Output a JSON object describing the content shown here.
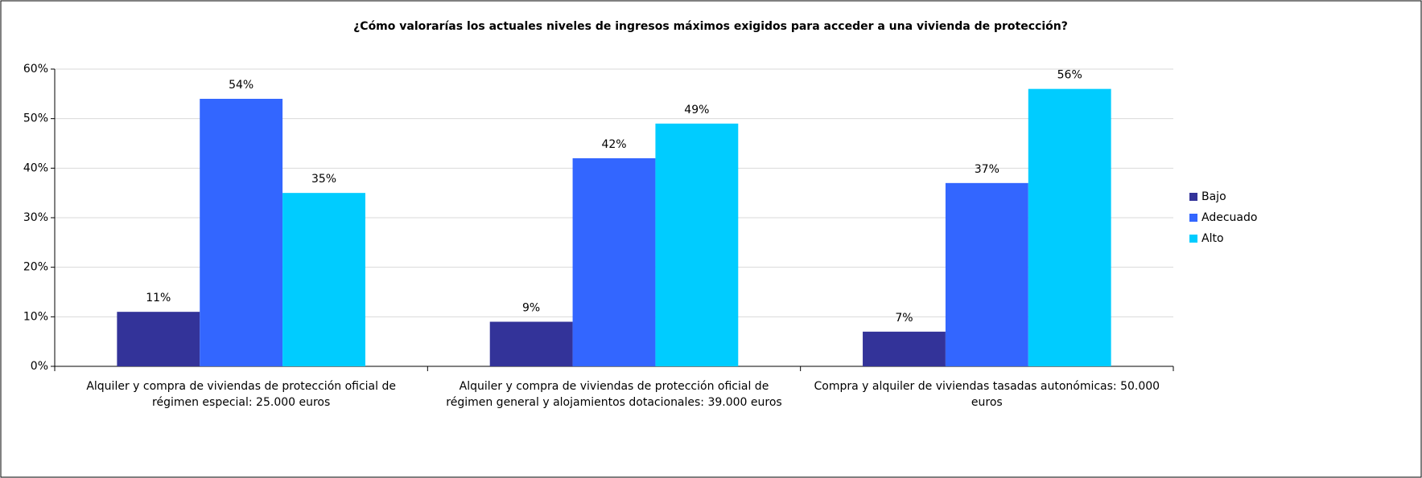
{
  "chart_data": {
    "type": "bar",
    "title": "¿Cómo valorarías los actuales niveles de ingresos máximos exigidos para acceder a una vivienda de protección?",
    "categories": [
      "Alquiler y compra de viviendas de protección oficial de régimen especial: 25.000 euros",
      "Alquiler y compra de viviendas de protección oficial de régimen general y alojamientos dotacionales: 39.000 euros",
      "Compra y alquiler de viviendas tasadas autonómicas: 50.000 euros"
    ],
    "series": [
      {
        "name": "Bajo",
        "color": "#333399",
        "values": [
          11,
          9,
          7
        ],
        "value_labels": [
          "11%",
          "9%",
          "7%"
        ]
      },
      {
        "name": "Adecuado",
        "color": "#3366ff",
        "values": [
          54,
          42,
          37
        ],
        "value_labels": [
          "54%",
          "42%",
          "37%"
        ]
      },
      {
        "name": "Alto",
        "color": "#00ccff",
        "values": [
          35,
          49,
          56
        ],
        "value_labels": [
          "35%",
          "49%",
          "56%"
        ]
      }
    ],
    "ylim": [
      0,
      60
    ],
    "yticks": [
      {
        "value": 0,
        "label": "0%"
      },
      {
        "value": 10,
        "label": "10%"
      },
      {
        "value": 20,
        "label": "20%"
      },
      {
        "value": 30,
        "label": "30%"
      },
      {
        "value": 40,
        "label": "40%"
      },
      {
        "value": 50,
        "label": "50%"
      },
      {
        "value": 60,
        "label": "60%"
      }
    ],
    "grid": true,
    "legend": "right"
  }
}
